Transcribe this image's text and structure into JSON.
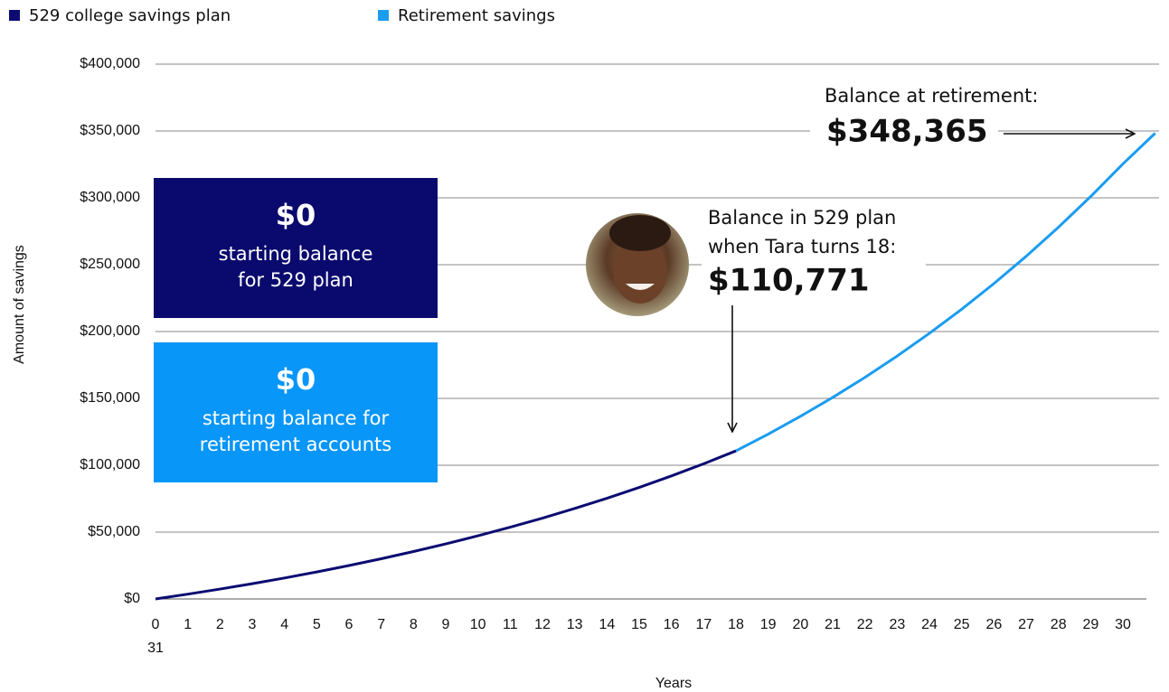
{
  "chart_data": {
    "type": "line",
    "legend": "top-left",
    "y_label": "Amount of savings",
    "x_label": "Years",
    "x": [
      0,
      1,
      2,
      3,
      4,
      5,
      6,
      7,
      8,
      9,
      10,
      11,
      12,
      13,
      14,
      15,
      16,
      17,
      18,
      19,
      20,
      21,
      22,
      23,
      24,
      25,
      26,
      27,
      28,
      29,
      30,
      31
    ],
    "xlim": [
      0,
      31
    ],
    "xticks": [
      0,
      1,
      2,
      3,
      4,
      5,
      6,
      7,
      8,
      9,
      10,
      11,
      12,
      13,
      14,
      15,
      16,
      17,
      18,
      19,
      20,
      21,
      22,
      23,
      24,
      25,
      26,
      27,
      28,
      29,
      30,
      31
    ],
    "ylim": [
      0,
      400000
    ],
    "yticks": [
      {
        "value": 0,
        "label": "$0"
      },
      {
        "value": 50000,
        "label": "$50,000"
      },
      {
        "value": 100000,
        "label": "$100,000"
      },
      {
        "value": 150000,
        "label": "$150,000"
      },
      {
        "value": 200000,
        "label": "$200,000"
      },
      {
        "value": 250000,
        "label": "$250,000"
      },
      {
        "value": 300000,
        "label": "$300,000"
      },
      {
        "value": 350000,
        "label": "$350,000"
      },
      {
        "value": 400000,
        "label": "$400,000"
      }
    ],
    "grid": true,
    "series": [
      {
        "name": "529 college savings plan",
        "color": "#0b0b72",
        "values": [
          0,
          3584,
          7383,
          11410,
          15679,
          20203,
          25000,
          30084,
          35473,
          41186,
          47241,
          53659,
          60463,
          67675,
          75320,
          83423,
          92012,
          101117,
          110771,
          null,
          null,
          null,
          null,
          null,
          null,
          null,
          null,
          null,
          null,
          null,
          null,
          null
        ]
      },
      {
        "name": "Retirement savings",
        "color": "#1a9cf0",
        "values": [
          null,
          null,
          null,
          null,
          null,
          null,
          null,
          null,
          null,
          null,
          null,
          null,
          null,
          null,
          null,
          null,
          null,
          null,
          110771,
          123300,
          136600,
          150700,
          165700,
          181700,
          198700,
          216700,
          235900,
          256300,
          278000,
          301000,
          325400,
          348365
        ]
      }
    ],
    "boxes": [
      {
        "amount": "$0",
        "lines": [
          "starting balance",
          "for 529 plan"
        ],
        "color": "#0a0a6e"
      },
      {
        "amount": "$0",
        "lines": [
          "starting balance for",
          "retirement accounts"
        ],
        "color": "#0896f8"
      }
    ],
    "annotations": {
      "college": {
        "lines": [
          "Balance in 529 plan",
          "when Tara turns 18:"
        ],
        "amount": "$110,771"
      },
      "retirement": {
        "lines": [
          "Balance at retirement:"
        ],
        "amount": "$348,365"
      }
    }
  }
}
